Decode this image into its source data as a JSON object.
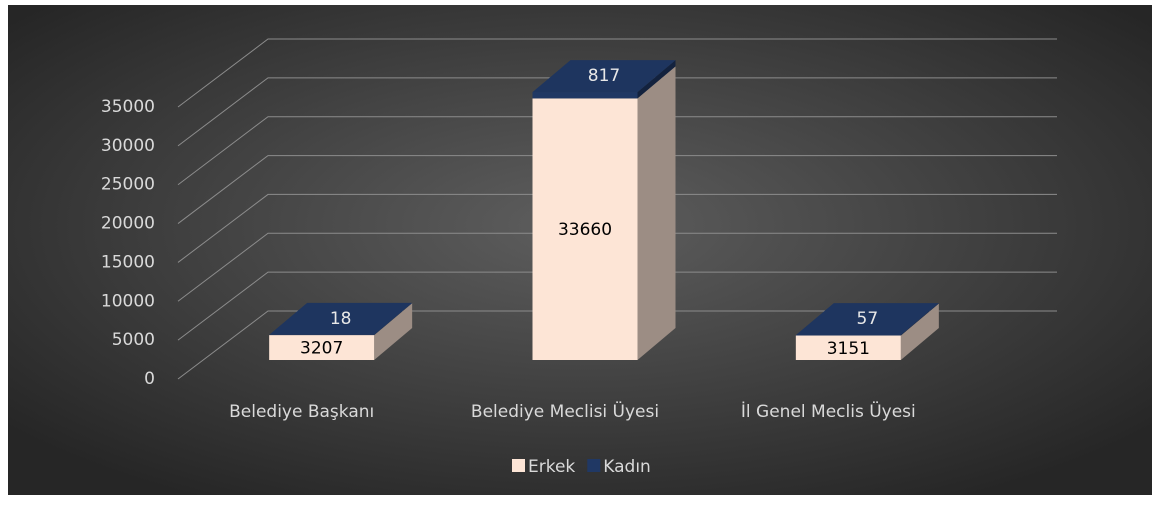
{
  "chart_data": {
    "type": "bar3d_stacked",
    "categories": [
      "Belediye Başkanı",
      "Belediye Meclisi Üyesi",
      "İl Genel Meclis Üyesi"
    ],
    "series": [
      {
        "name": "Erkek",
        "color": "#fde5d6",
        "values": [
          3207,
          33660,
          3151
        ]
      },
      {
        "name": "Kadın",
        "color": "#203864",
        "values": [
          18,
          817,
          57
        ]
      }
    ],
    "ylim": [
      0,
      35000
    ],
    "yticks": [
      0,
      5000,
      10000,
      15000,
      20000,
      25000,
      30000,
      35000
    ],
    "grid": true,
    "legend": "bottom"
  }
}
